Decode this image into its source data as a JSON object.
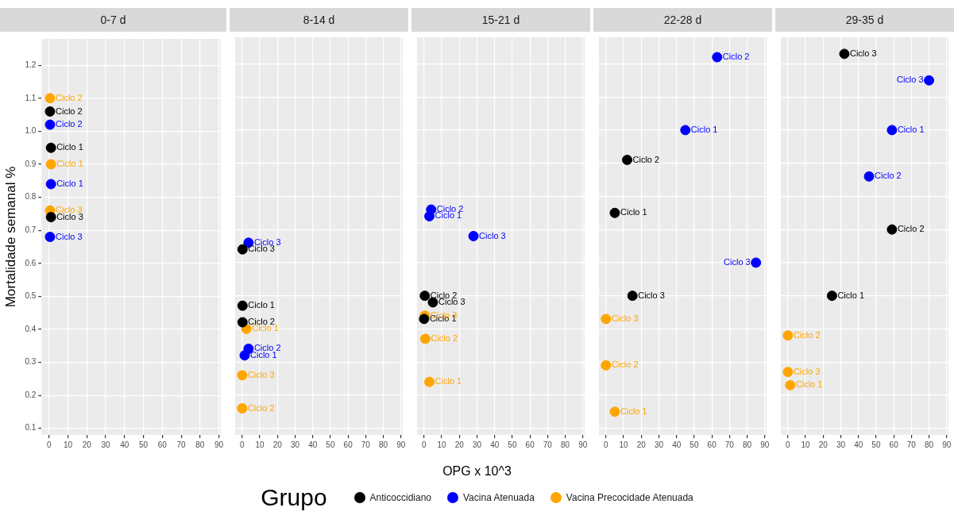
{
  "chart_data": [
    {
      "type": "scatter",
      "title": "0-7 d",
      "ylabel": "Mortalidade semanal %",
      "xlim": [
        -4,
        91
      ],
      "xticks": [
        0,
        10,
        20,
        30,
        40,
        50,
        60,
        70,
        80,
        90
      ],
      "ylim": [
        0.08,
        1.28
      ],
      "yticks": [
        0.1,
        0.2,
        0.3,
        0.4,
        0.5,
        0.6,
        0.7,
        0.8,
        0.9,
        {
          "value": 1,
          "label": "1.0"
        },
        1.1,
        1.2
      ],
      "grid": true,
      "marker": "circle",
      "series": [
        {
          "color": "#000000",
          "x": [
            1,
            0.5,
            1
          ],
          "values": [
            0.95,
            1.06,
            0.74
          ],
          "value_labels": [
            "Ciclo 1",
            "Ciclo 2",
            "Ciclo 3"
          ]
        },
        {
          "color": "#0000ff",
          "x": [
            1,
            0.5,
            0.5
          ],
          "values": [
            0.84,
            1.02,
            0.68
          ],
          "value_labels": [
            "Ciclo 1",
            "Ciclo 2",
            "Ciclo 3"
          ]
        },
        {
          "color": "#ffa500",
          "x": [
            1,
            0.5,
            0.5
          ],
          "values": [
            0.9,
            1.1,
            0.76
          ],
          "value_labels": [
            "Ciclo 1",
            "Ciclo 2",
            "Ciclo 3"
          ]
        }
      ]
    },
    {
      "type": "scatter",
      "title": "8-14 d",
      "xlim": [
        -4,
        91
      ],
      "xticks": [
        0,
        10,
        20,
        30,
        40,
        50,
        60,
        70,
        80,
        90
      ],
      "ylim": [
        0.08,
        1.28
      ],
      "yticks": [
        0.1,
        0.2,
        0.3,
        0.4,
        0.5,
        0.6,
        0.7,
        0.8,
        0.9,
        1.0,
        1.1,
        1.2
      ],
      "grid": true,
      "marker": "circle",
      "tick_labels": "x",
      "series": [
        {
          "color": "#000000",
          "x": [
            0.2,
            0.2,
            0.2
          ],
          "values": [
            0.47,
            0.42,
            0.64
          ],
          "value_labels": [
            "Ciclo 1",
            "Ciclo 2",
            "Ciclo 3"
          ]
        },
        {
          "color": "#0000ff",
          "x": [
            1.4,
            3.6,
            3.6
          ],
          "values": [
            0.32,
            0.34,
            0.66
          ],
          "value_labels": [
            "Ciclo 1",
            "Ciclo 2",
            "Ciclo 3"
          ]
        },
        {
          "color": "#ffa500",
          "x": [
            2.4,
            0,
            0
          ],
          "values": [
            0.4,
            0.16,
            0.26
          ],
          "value_labels": [
            "Ciclo 1",
            "Ciclo 2",
            "Ciclo 3"
          ]
        }
      ]
    },
    {
      "type": "scatter",
      "title": "15-21 d",
      "xlabel": "OPG x 10^3",
      "legend": "bottom",
      "legend_title": "Grupo",
      "xlim": [
        -4,
        91
      ],
      "xticks": [
        0,
        10,
        20,
        30,
        40,
        50,
        60,
        70,
        80,
        90
      ],
      "ylim": [
        0.08,
        1.28
      ],
      "yticks": [
        0.1,
        0.2,
        0.3,
        0.4,
        0.5,
        0.6,
        0.7,
        0.8,
        0.9,
        1.0,
        1.1,
        1.2
      ],
      "grid": true,
      "marker": "circle",
      "tick_labels": "x",
      "series": [
        {
          "name": "Anticoccidiano",
          "color": "#000000",
          "x": [
            0,
            0.4,
            5
          ],
          "values": [
            0.43,
            0.5,
            0.48
          ],
          "value_labels": [
            "Ciclo 1",
            "Ciclo 2",
            "Ciclo 3"
          ]
        },
        {
          "name": "Vacina Atenuada",
          "color": "#0000ff",
          "x": [
            3,
            4,
            28
          ],
          "values": [
            0.74,
            0.76,
            0.68
          ],
          "value_labels": [
            "Ciclo 1",
            "Ciclo 2",
            "Ciclo 3"
          ]
        },
        {
          "name": "Vacina Precocidade Atenuada",
          "color": "#ffa500",
          "x": [
            3,
            0.7,
            0.4
          ],
          "values": [
            0.24,
            0.37,
            0.44
          ],
          "value_labels": [
            "Ciclo 1",
            "Ciclo 2",
            "Ciclo 3"
          ]
        }
      ]
    },
    {
      "type": "scatter",
      "title": "22-28 d",
      "xlim": [
        -4,
        91
      ],
      "xticks": [
        0,
        10,
        20,
        30,
        40,
        50,
        60,
        70,
        80,
        90
      ],
      "ylim": [
        0.08,
        1.28
      ],
      "yticks": [
        0.1,
        0.2,
        0.3,
        0.4,
        0.5,
        0.6,
        0.7,
        0.8,
        0.9,
        1.0,
        1.1,
        1.2
      ],
      "grid": true,
      "marker": "circle",
      "tick_labels": "x",
      "series": [
        {
          "color": "#000000",
          "x": [
            5,
            12,
            15
          ],
          "values": [
            0.75,
            0.91,
            0.5
          ],
          "value_labels": [
            "Ciclo 1",
            "Ciclo 2",
            "Ciclo 3"
          ]
        },
        {
          "color": "#0000ff",
          "x": [
            45,
            63,
            85
          ],
          "values": [
            1.0,
            1.22,
            0.6
          ],
          "value_labels": [
            "Ciclo 1",
            "Ciclo 2",
            "Ciclo 3"
          ]
        },
        {
          "color": "#ffa500",
          "x": [
            5,
            0,
            0
          ],
          "values": [
            0.15,
            0.29,
            0.43
          ],
          "value_labels": [
            "Ciclo 1",
            "Ciclo 2",
            "Ciclo 3"
          ]
        }
      ]
    },
    {
      "type": "scatter",
      "title": "29-35 d",
      "xlim": [
        -4,
        91
      ],
      "xticks": [
        0,
        10,
        20,
        30,
        40,
        50,
        60,
        70,
        80,
        90
      ],
      "ylim": [
        0.08,
        1.28
      ],
      "yticks": [
        0.1,
        0.2,
        0.3,
        0.4,
        0.5,
        0.6,
        0.7,
        0.8,
        0.9,
        1.0,
        1.1,
        1.2
      ],
      "grid": true,
      "marker": "circle",
      "tick_labels": "x",
      "series": [
        {
          "color": "#000000",
          "x": [
            25,
            59,
            32
          ],
          "values": [
            0.5,
            0.7,
            1.23
          ],
          "value_labels": [
            "Ciclo 1",
            "Ciclo 2",
            "Ciclo 3"
          ]
        },
        {
          "color": "#0000ff",
          "x": [
            59,
            46,
            80
          ],
          "values": [
            1.0,
            0.86,
            1.15
          ],
          "value_labels": [
            "Ciclo 1",
            "Ciclo 2",
            "Ciclo 3"
          ]
        },
        {
          "color": "#ffa500",
          "x": [
            1.3,
            0,
            0
          ],
          "values": [
            0.23,
            0.38,
            0.27
          ],
          "value_labels": [
            "Ciclo 1",
            "Ciclo 2",
            "Ciclo 3"
          ]
        }
      ]
    }
  ]
}
